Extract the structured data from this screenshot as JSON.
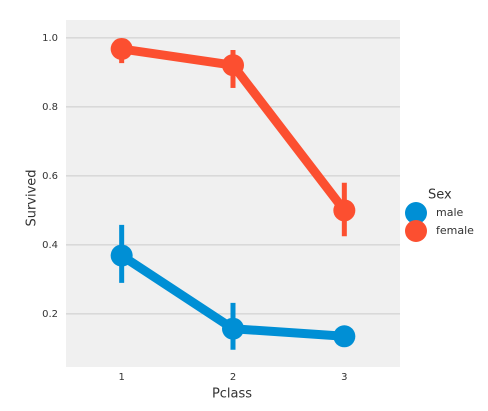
{
  "chart_data": {
    "type": "pointplot",
    "x_label": "Pclass",
    "y_label": "Survived",
    "categories": [
      "1",
      "2",
      "3"
    ],
    "legend_title": "Sex",
    "series": [
      {
        "name": "male",
        "color": "#008fd5",
        "values": [
          0.369,
          0.157,
          0.135
        ],
        "ci_low": [
          0.29,
          0.096,
          0.11
        ],
        "ci_high": [
          0.458,
          0.232,
          0.16
        ]
      },
      {
        "name": "female",
        "color": "#fc4f30",
        "values": [
          0.968,
          0.921,
          0.5
        ],
        "ci_low": [
          0.927,
          0.855,
          0.425
        ],
        "ci_high": [
          0.994,
          0.965,
          0.58
        ]
      }
    ],
    "ylim": [
      0.046,
      1.052
    ],
    "yticks": [
      0.2,
      0.4,
      0.6,
      0.8,
      {
        "value": 1,
        "label": "1.0"
      }
    ],
    "grid": true
  }
}
